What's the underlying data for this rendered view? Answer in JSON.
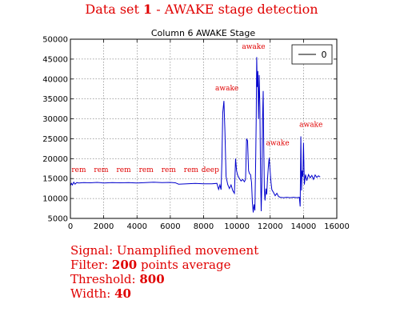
{
  "header": {
    "title_prefix": "Data set ",
    "title_num": "1",
    "title_suffix": " - AWAKE stage detection"
  },
  "chart_data": {
    "type": "line",
    "title": "Column 6 AWAKE Stage",
    "xlim": [
      0,
      16000
    ],
    "ylim": [
      5000,
      50000
    ],
    "xticks": [
      "0",
      "2000",
      "4000",
      "6000",
      "8000",
      "10000",
      "12000",
      "14000",
      "16000"
    ],
    "yticks": [
      "5000",
      "10000",
      "15000",
      "20000",
      "25000",
      "30000",
      "35000",
      "40000",
      "45000",
      "50000"
    ],
    "grid": true,
    "legend": {
      "position": "top-right",
      "entries": [
        "0"
      ]
    },
    "line_color": "#0000cc",
    "label_color": "#e00000",
    "series": [
      {
        "name": "0",
        "points": [
          [
            0,
            13200
          ],
          [
            60,
            13800
          ],
          [
            120,
            13400
          ],
          [
            200,
            14100
          ],
          [
            280,
            13600
          ],
          [
            380,
            14000
          ],
          [
            500,
            13900
          ],
          [
            800,
            14000
          ],
          [
            1200,
            13950
          ],
          [
            1600,
            14050
          ],
          [
            2000,
            13900
          ],
          [
            2500,
            14000
          ],
          [
            3000,
            13950
          ],
          [
            3500,
            14000
          ],
          [
            4000,
            13900
          ],
          [
            4500,
            14000
          ],
          [
            5000,
            14100
          ],
          [
            5500,
            14000
          ],
          [
            6000,
            14050
          ],
          [
            6300,
            13950
          ],
          [
            6500,
            13600
          ],
          [
            7000,
            13700
          ],
          [
            7500,
            13800
          ],
          [
            8000,
            13700
          ],
          [
            8500,
            13700
          ],
          [
            8800,
            13800
          ],
          [
            8900,
            12300
          ],
          [
            8980,
            13400
          ],
          [
            9050,
            12200
          ],
          [
            9100,
            19500
          ],
          [
            9150,
            31500
          ],
          [
            9220,
            34500
          ],
          [
            9280,
            27000
          ],
          [
            9350,
            15500
          ],
          [
            9450,
            13500
          ],
          [
            9550,
            12500
          ],
          [
            9650,
            13400
          ],
          [
            9750,
            12000
          ],
          [
            9850,
            11300
          ],
          [
            9920,
            20000
          ],
          [
            9980,
            17000
          ],
          [
            10050,
            15800
          ],
          [
            10150,
            15000
          ],
          [
            10250,
            14400
          ],
          [
            10350,
            14800
          ],
          [
            10450,
            14200
          ],
          [
            10520,
            14800
          ],
          [
            10580,
            25000
          ],
          [
            10640,
            24500
          ],
          [
            10700,
            17000
          ],
          [
            10760,
            16200
          ],
          [
            10820,
            16000
          ],
          [
            10880,
            14000
          ],
          [
            10930,
            9000
          ],
          [
            10980,
            6500
          ],
          [
            11030,
            8500
          ],
          [
            11080,
            7000
          ],
          [
            11130,
            20000
          ],
          [
            11160,
            30000
          ],
          [
            11190,
            45500
          ],
          [
            11220,
            38000
          ],
          [
            11260,
            42000
          ],
          [
            11300,
            30000
          ],
          [
            11340,
            41000
          ],
          [
            11380,
            33000
          ],
          [
            11420,
            16000
          ],
          [
            11460,
            6800
          ],
          [
            11500,
            14000
          ],
          [
            11540,
            30000
          ],
          [
            11580,
            37000
          ],
          [
            11610,
            24000
          ],
          [
            11650,
            12000
          ],
          [
            11690,
            9500
          ],
          [
            11740,
            12500
          ],
          [
            11790,
            11000
          ],
          [
            11840,
            15000
          ],
          [
            11890,
            18000
          ],
          [
            11940,
            20200
          ],
          [
            11990,
            17200
          ],
          [
            12050,
            14000
          ],
          [
            12100,
            12200
          ],
          [
            12200,
            11500
          ],
          [
            12300,
            10700
          ],
          [
            12400,
            11300
          ],
          [
            12500,
            10500
          ],
          [
            12600,
            10300
          ],
          [
            12800,
            10200
          ],
          [
            13000,
            10300
          ],
          [
            13200,
            10200
          ],
          [
            13400,
            10300
          ],
          [
            13600,
            10200
          ],
          [
            13750,
            10300
          ],
          [
            13800,
            8000
          ],
          [
            13840,
            25600
          ],
          [
            13880,
            12000
          ],
          [
            13920,
            17000
          ],
          [
            13960,
            15500
          ],
          [
            14000,
            24000
          ],
          [
            14050,
            13500
          ],
          [
            14120,
            16000
          ],
          [
            14200,
            14500
          ],
          [
            14300,
            16000
          ],
          [
            14400,
            15200
          ],
          [
            14500,
            15800
          ],
          [
            14600,
            14800
          ],
          [
            14700,
            15900
          ],
          [
            14800,
            15300
          ],
          [
            14900,
            15700
          ],
          [
            15000,
            15400
          ]
        ]
      }
    ],
    "annotations": [
      {
        "text": "rem",
        "x": 500,
        "y": 16700
      },
      {
        "text": "rem",
        "x": 1850,
        "y": 16700
      },
      {
        "text": "rem",
        "x": 3200,
        "y": 16700
      },
      {
        "text": "rem",
        "x": 4550,
        "y": 16700
      },
      {
        "text": "rem",
        "x": 5900,
        "y": 16700
      },
      {
        "text": "rem",
        "x": 7250,
        "y": 16700
      },
      {
        "text": "deep",
        "x": 8400,
        "y": 16700
      },
      {
        "text": "awake",
        "x": 9400,
        "y": 37100
      },
      {
        "text": "awake",
        "x": 11000,
        "y": 47600
      },
      {
        "text": "awake",
        "x": 12450,
        "y": 23400
      },
      {
        "text": "awake",
        "x": 14450,
        "y": 28000
      }
    ]
  },
  "caption": {
    "signal_label": "Signal: ",
    "signal_value": "Unamplified movement",
    "filter_label": "Filter: ",
    "filter_num": "200",
    "filter_suffix": " points average",
    "threshold_label": "Threshold: ",
    "threshold_value": "800",
    "width_label": "Width: ",
    "width_value": "40"
  }
}
